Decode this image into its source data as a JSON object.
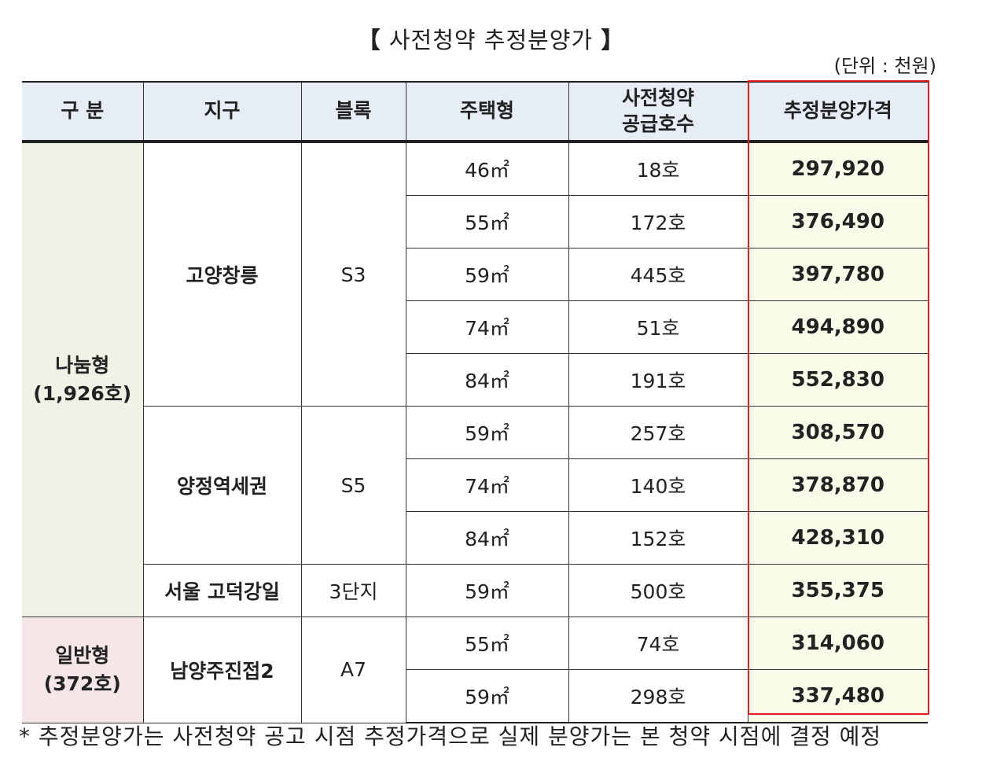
{
  "title": {
    "bracket_open": "【",
    "text": "사전청약 추정분양가",
    "bracket_close": "】"
  },
  "unit_label": "(단위 : 천원)",
  "headers": {
    "gubun": "구 분",
    "district": "지구",
    "block": "블록",
    "house_type": "주택형",
    "supply_line1": "사전청약",
    "supply_line2": "공급호수",
    "price": "추정분양가격"
  },
  "groups": {
    "nanum": {
      "line1": "나눔형",
      "line2": "(1,926호)"
    },
    "ilban": {
      "line1": "일반형",
      "line2": "(372호)"
    }
  },
  "districts": [
    {
      "name": "고양창릉",
      "block": "S3"
    },
    {
      "name": "양정역세권",
      "block": "S5"
    },
    {
      "name": "서울 고덕강일",
      "block": "3단지"
    },
    {
      "name": "남양주진접2",
      "block": "A7"
    }
  ],
  "rows": [
    {
      "type": "46㎡",
      "supply": "18호",
      "price": "297,920"
    },
    {
      "type": "55㎡",
      "supply": "172호",
      "price": "376,490"
    },
    {
      "type": "59㎡",
      "supply": "445호",
      "price": "397,780"
    },
    {
      "type": "74㎡",
      "supply": "51호",
      "price": "494,890"
    },
    {
      "type": "84㎡",
      "supply": "191호",
      "price": "552,830"
    },
    {
      "type": "59㎡",
      "supply": "257호",
      "price": "308,570"
    },
    {
      "type": "74㎡",
      "supply": "140호",
      "price": "378,870"
    },
    {
      "type": "84㎡",
      "supply": "152호",
      "price": "428,310"
    },
    {
      "type": "59㎡",
      "supply": "500호",
      "price": "355,375"
    },
    {
      "type": "55㎡",
      "supply": "74호",
      "price": "314,060"
    },
    {
      "type": "59㎡",
      "supply": "298호",
      "price": "337,480"
    }
  ],
  "note": "* 추정분양가는 사전청약 공고 시점 추정가격으로 실제 분양가는 본 청약 시점에 결정 예정",
  "colors": {
    "header_bg": "#e7edf6",
    "nanum_bg": "#eef3e6",
    "ilban_bg": "#f6e6e8",
    "price_bg": "#fbfbe9",
    "highlight_border": "#e0201e"
  }
}
